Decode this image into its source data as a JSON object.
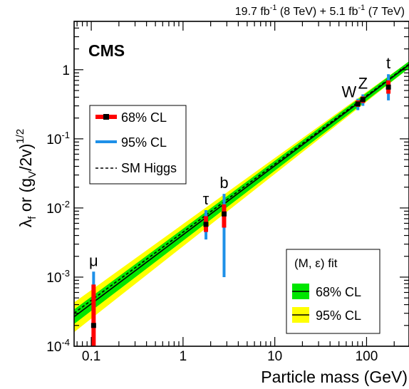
{
  "chart_data": {
    "type": "scatter",
    "title": "",
    "header_lumi": {
      "part1": "19.7 fb",
      "sup1": "-1",
      "part2": " (8 TeV) +  5.1 fb",
      "sup2": "-1",
      "part3": " (7 TeV)"
    },
    "experiment_label": "CMS",
    "xlabel": "Particle mass (GeV)",
    "ylabel": {
      "lambda": "λ",
      "lambda_sub": "f",
      "middle": " or (g",
      "g_sub": "V",
      "end": "/2v)",
      "sup": "1/2"
    },
    "x_scale": "log",
    "y_scale": "log",
    "xlim": [
      0.065,
      290
    ],
    "ylim": [
      0.0001,
      5
    ],
    "x_tick_labels": [
      {
        "value": 0.1,
        "label": "0.1"
      },
      {
        "value": 1,
        "label": "1"
      },
      {
        "value": 10,
        "label": "10"
      },
      {
        "value": 100,
        "label": "100"
      }
    ],
    "y_tick_labels": [
      {
        "value": 0.0001,
        "base": "10",
        "exp": "-4"
      },
      {
        "value": 0.001,
        "base": "10",
        "exp": "-3"
      },
      {
        "value": 0.01,
        "base": "10",
        "exp": "-2"
      },
      {
        "value": 0.1,
        "base": "10",
        "exp": "-1"
      },
      {
        "value": 1,
        "base": "1",
        "exp": ""
      }
    ],
    "particles": [
      {
        "name": "μ",
        "mass": 0.106,
        "value": 0.0002,
        "ci68": [
          0.0001,
          0.00078
        ],
        "ci95": [
          0.0001,
          0.0012
        ],
        "label_pos": "above"
      },
      {
        "name": "τ",
        "mass": 1.777,
        "value": 0.0058,
        "ci68": [
          0.0045,
          0.0076
        ],
        "ci95": [
          0.0035,
          0.0093
        ],
        "label_pos": "above"
      },
      {
        "name": "b",
        "mass": 2.8,
        "value": 0.0082,
        "ci68": [
          0.0052,
          0.0113
        ],
        "ci95": [
          0.001,
          0.016
        ],
        "label_pos": "above"
      },
      {
        "name": "W",
        "mass": 80.4,
        "value": 0.32,
        "ci68": [
          0.29,
          0.36
        ],
        "ci95": [
          0.26,
          0.38
        ],
        "label_pos": "left"
      },
      {
        "name": "Z",
        "mass": 91.2,
        "value": 0.37,
        "ci68": [
          0.33,
          0.41
        ],
        "ci95": [
          0.3,
          0.44
        ],
        "label_pos": "above"
      },
      {
        "name": "t",
        "mass": 173,
        "value": 0.56,
        "ci68": [
          0.45,
          0.7
        ],
        "ci95": [
          0.36,
          0.86
        ],
        "label_pos": "above"
      }
    ],
    "sm_higgs_line": {
      "formula": "lambda = m / v",
      "v": 246.22
    },
    "fit_band": {
      "M": 246,
      "epsilon": 0,
      "band68_upper_at_low": 0.00034,
      "band68_lower_at_low": 0.00021,
      "band95_upper_at_low": 0.00043,
      "band95_lower_at_low": 0.00016,
      "low_x": 0.065,
      "high_x": 290
    },
    "legend_left": {
      "placement": "left-middle",
      "entries": [
        {
          "label": "68% CL",
          "style": "red-bar-with-black-marker"
        },
        {
          "label": "95% CL",
          "style": "blue-bar"
        },
        {
          "label": "SM Higgs",
          "style": "black-dashed"
        }
      ]
    },
    "legend_right": {
      "placement": "bottom-right",
      "title": "(M, ε) fit",
      "entries": [
        {
          "label": "68% CL",
          "style": "green-band"
        },
        {
          "label": "95% CL",
          "style": "yellow-band"
        }
      ]
    },
    "colors": {
      "ci68": "#ff0000",
      "ci95": "#1e90e8",
      "band68": "#00e600",
      "band95": "#ffff00",
      "line": "#000000",
      "marker": "#000000"
    },
    "grid": false
  }
}
